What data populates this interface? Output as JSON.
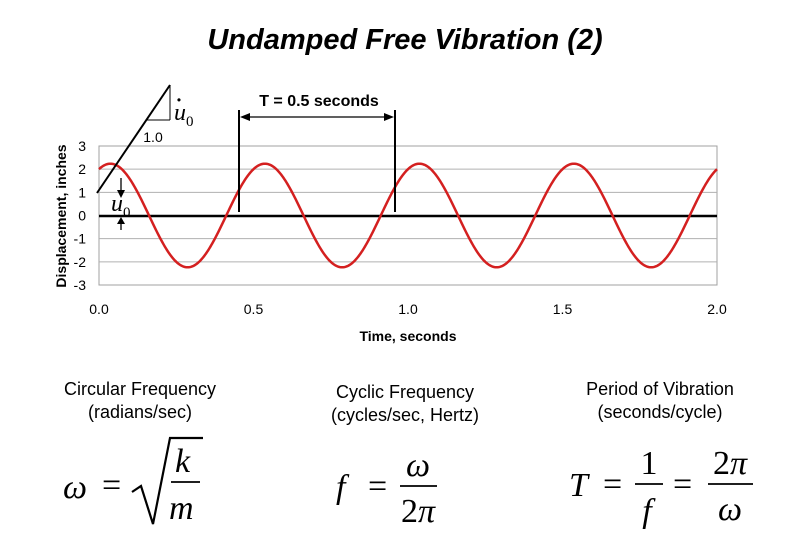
{
  "title": "Undamped Free Vibration (2)",
  "chart_data": {
    "type": "line",
    "xlabel": "Time, seconds",
    "ylabel": "Displacement, inches",
    "xlim": [
      0,
      2
    ],
    "ylim": [
      -3,
      3
    ],
    "x_ticks": [
      "0.0",
      "0.5",
      "1.0",
      "1.5",
      "2.0"
    ],
    "y_ticks": [
      "3",
      "2",
      "1",
      "0",
      "-1",
      "-2",
      "-3"
    ],
    "grid": "horizontal",
    "series": [
      {
        "color": "#d42020",
        "amplitude": 2.236,
        "period": 0.5,
        "initial_displacement": 1.0,
        "phase_rad": -0.4636
      }
    ],
    "annotations": {
      "period_label": "T = 0.5 seconds",
      "slope_label": "1.0",
      "velocity_symbol": "u",
      "velocity_sub": "0",
      "displacement_symbol": "u",
      "displacement_sub": "0"
    }
  },
  "captions": {
    "circular": "Circular Frequency (radians/sec)",
    "cyclic": "Cyclic Frequency (cycles/sec, Hertz)",
    "period": "Period of Vibration (seconds/cycle)"
  },
  "equations": {
    "omega": "ω",
    "equals": "=",
    "k": "k",
    "m": "m",
    "f": "f",
    "two": "2",
    "pi": "π",
    "T": "T",
    "one": "1"
  }
}
